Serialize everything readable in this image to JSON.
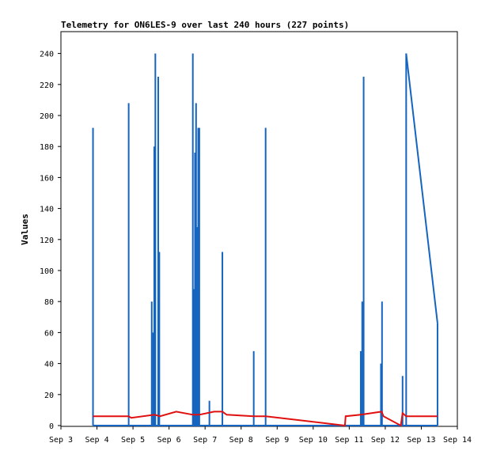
{
  "chart_data": {
    "type": "line",
    "title": "Telemetry for ON6LES-9 over last 240 hours (227 points)",
    "ylabel": "Values",
    "xlabel": "",
    "ylim": [
      0,
      255
    ],
    "xlim": [
      3,
      14
    ],
    "x_ticks": [
      {
        "v": 3,
        "label": "Sep 3"
      },
      {
        "v": 4,
        "label": "Sep 4"
      },
      {
        "v": 5,
        "label": "Sep 5"
      },
      {
        "v": 6,
        "label": "Sep 6"
      },
      {
        "v": 7,
        "label": "Sep 7"
      },
      {
        "v": 8,
        "label": "Sep 8"
      },
      {
        "v": 9,
        "label": "Sep 9"
      },
      {
        "v": 10,
        "label": "Sep 10"
      },
      {
        "v": 11,
        "label": "Sep 11"
      },
      {
        "v": 12,
        "label": "Sep 12"
      },
      {
        "v": 13,
        "label": "Sep 13"
      },
      {
        "v": 14,
        "label": "Sep 14"
      }
    ],
    "y_ticks": [
      0,
      20,
      40,
      60,
      80,
      100,
      120,
      140,
      160,
      180,
      200,
      220,
      240
    ],
    "grid": false,
    "series": [
      {
        "color": "#1565c0",
        "spikes": [
          [
            3.89,
            192
          ],
          [
            4.88,
            208
          ],
          [
            5.52,
            80
          ],
          [
            5.56,
            60
          ],
          [
            5.59,
            180
          ],
          [
            5.62,
            240
          ],
          [
            5.7,
            225
          ],
          [
            5.73,
            112
          ],
          [
            6.66,
            240
          ],
          [
            6.69,
            88
          ],
          [
            6.72,
            176
          ],
          [
            6.75,
            208
          ],
          [
            6.78,
            128
          ],
          [
            6.81,
            192
          ],
          [
            6.84,
            192
          ],
          [
            7.12,
            16
          ],
          [
            7.48,
            112
          ],
          [
            8.35,
            48
          ],
          [
            8.68,
            192
          ],
          [
            11.32,
            48
          ],
          [
            11.36,
            80
          ],
          [
            11.4,
            225
          ],
          [
            11.88,
            40
          ],
          [
            11.91,
            80
          ],
          [
            12.48,
            32
          ]
        ],
        "ramp": [
          [
            12.58,
            240
          ],
          [
            13.45,
            66
          ]
        ]
      },
      {
        "color": "#e01010",
        "points": [
          [
            3.89,
            6
          ],
          [
            4.88,
            6
          ],
          [
            4.95,
            5
          ],
          [
            5.6,
            7
          ],
          [
            5.75,
            6
          ],
          [
            6.2,
            9
          ],
          [
            6.66,
            7
          ],
          [
            6.84,
            7
          ],
          [
            7.25,
            9
          ],
          [
            7.48,
            9
          ],
          [
            7.6,
            7
          ],
          [
            8.35,
            6
          ],
          [
            8.68,
            6
          ],
          [
            10.88,
            0
          ],
          [
            10.9,
            6
          ],
          [
            11.32,
            7
          ],
          [
            11.9,
            9
          ],
          [
            11.95,
            6
          ],
          [
            12.43,
            0
          ],
          [
            12.48,
            8
          ],
          [
            12.58,
            6
          ],
          [
            13.45,
            6
          ]
        ]
      }
    ]
  }
}
